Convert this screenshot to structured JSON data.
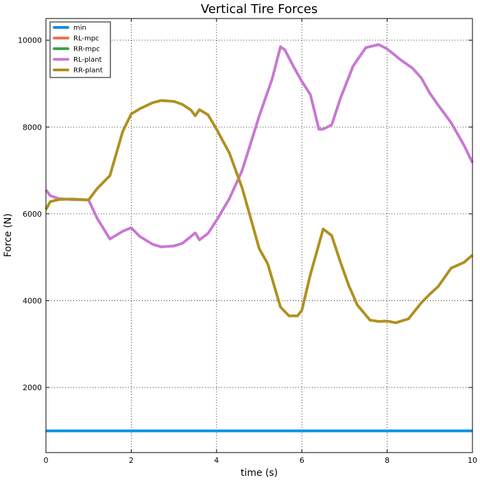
{
  "chart_data": {
    "type": "line",
    "title": "Vertical Tire Forces",
    "xlabel": "time (s)",
    "ylabel": "Force (N)",
    "xlim": [
      0,
      10
    ],
    "ylim": [
      500,
      10500
    ],
    "xticks": [
      0,
      2,
      4,
      6,
      8,
      10
    ],
    "yticks": [
      2000,
      4000,
      6000,
      8000,
      10000
    ],
    "grid": true,
    "legend_position": "top-left",
    "series": [
      {
        "name": "min",
        "color": "#0a90e6",
        "x": [
          0,
          10
        ],
        "y": [
          1000,
          1000
        ]
      },
      {
        "name": "RL-mpc",
        "color": "#e07050",
        "x": [],
        "y": []
      },
      {
        "name": "RR-mpc",
        "color": "#40a050",
        "x": [],
        "y": []
      },
      {
        "name": "RL-plant",
        "color": "#c878d2",
        "x": [
          0,
          0.1,
          0.3,
          0.6,
          1.0,
          1.2,
          1.5,
          1.8,
          2.0,
          2.2,
          2.5,
          2.7,
          3.0,
          3.2,
          3.5,
          3.6,
          3.8,
          4.0,
          4.3,
          4.6,
          5.0,
          5.3,
          5.5,
          5.6,
          5.8,
          6.0,
          6.2,
          6.4,
          6.5,
          6.7,
          6.9,
          7.2,
          7.5,
          7.8,
          8.0,
          8.3,
          8.6,
          8.8,
          9.0,
          9.2,
          9.5,
          9.8,
          10.0
        ],
        "y": [
          6550,
          6420,
          6350,
          6330,
          6320,
          5900,
          5420,
          5600,
          5680,
          5480,
          5300,
          5240,
          5260,
          5320,
          5560,
          5400,
          5550,
          5850,
          6350,
          7000,
          8250,
          9100,
          9850,
          9780,
          9400,
          9050,
          8750,
          7950,
          7950,
          8050,
          8650,
          9400,
          9830,
          9900,
          9800,
          9560,
          9350,
          9130,
          8780,
          8500,
          8100,
          7580,
          7180
        ]
      },
      {
        "name": "RR-plant",
        "color": "#b09020",
        "x": [
          0,
          0.1,
          0.3,
          0.6,
          1.0,
          1.2,
          1.5,
          1.8,
          2.0,
          2.2,
          2.5,
          2.7,
          3.0,
          3.2,
          3.4,
          3.5,
          3.6,
          3.8,
          4.0,
          4.3,
          4.6,
          5.0,
          5.2,
          5.5,
          5.7,
          5.9,
          6.0,
          6.2,
          6.5,
          6.7,
          6.9,
          7.1,
          7.3,
          7.6,
          7.8,
          8.0,
          8.2,
          8.5,
          8.8,
          9.0,
          9.2,
          9.5,
          9.8,
          10.0
        ],
        "y": [
          6100,
          6280,
          6330,
          6340,
          6320,
          6580,
          6880,
          7900,
          8300,
          8420,
          8560,
          8610,
          8590,
          8520,
          8390,
          8260,
          8400,
          8280,
          7950,
          7400,
          6600,
          5200,
          4850,
          3850,
          3650,
          3650,
          3780,
          4600,
          5650,
          5500,
          4900,
          4350,
          3900,
          3550,
          3520,
          3530,
          3490,
          3580,
          3950,
          4150,
          4330,
          4750,
          4880,
          5050
        ]
      }
    ]
  }
}
